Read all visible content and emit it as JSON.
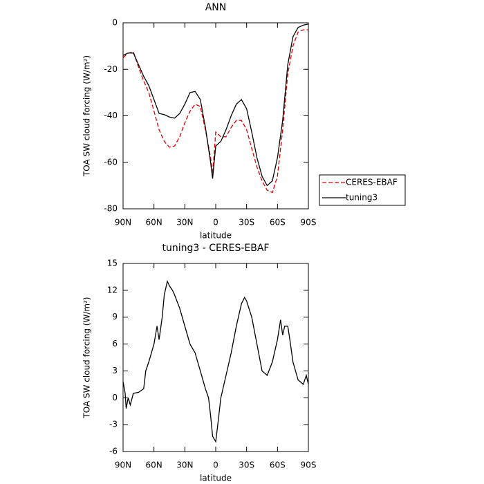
{
  "chart_data": [
    {
      "type": "line",
      "title": "ANN",
      "x_label": "latitude",
      "y_label": "TOA SW cloud forcing (W/m²)",
      "x": [
        90,
        85,
        80,
        75,
        70,
        65,
        60,
        55,
        50,
        45,
        40,
        35,
        30,
        25,
        20,
        15,
        10,
        5,
        3,
        0,
        -5,
        -10,
        -15,
        -20,
        -25,
        -30,
        -35,
        -40,
        -45,
        -50,
        -55,
        -60,
        -65,
        -70,
        -75,
        -80,
        -85,
        -90
      ],
      "series": [
        {
          "name": "CERES-EBAF",
          "color": "#e00000",
          "dash": true,
          "values": [
            -15,
            -13,
            -12.5,
            -19,
            -25,
            -30,
            -38,
            -46,
            -51,
            -53.5,
            -53,
            -49,
            -43,
            -38,
            -35,
            -36,
            -46,
            -58,
            -65,
            -47,
            -49,
            -49,
            -45,
            -42,
            -42,
            -46,
            -54,
            -62,
            -68,
            -72,
            -73,
            -66,
            -46,
            -22,
            -10,
            -4,
            -3,
            -3
          ]
        },
        {
          "name": "tuning3",
          "color": "#000000",
          "dash": false,
          "values": [
            -14,
            -13,
            -13,
            -18,
            -23,
            -27,
            -33,
            -39,
            -39.5,
            -40.5,
            -41,
            -39,
            -35,
            -30,
            -29.5,
            -33,
            -45,
            -60,
            -67,
            -53,
            -51,
            -46,
            -40,
            -35,
            -33,
            -37,
            -47,
            -58,
            -66,
            -70,
            -68,
            -58,
            -42,
            -18,
            -6,
            -2,
            -1,
            -0.5
          ]
        }
      ],
      "xlim": [
        90,
        -90
      ],
      "xticks": [
        {
          "value": 90,
          "label": "90N"
        },
        {
          "value": 60,
          "label": "60N"
        },
        {
          "value": 30,
          "label": "30N"
        },
        0,
        {
          "value": -30,
          "label": "30S"
        },
        {
          "value": -60,
          "label": "60S"
        },
        {
          "value": -90,
          "label": "90S"
        }
      ],
      "ylim": [
        -80,
        0
      ],
      "yticks": [
        -80,
        -60,
        -40,
        -20,
        0
      ],
      "legend": "right"
    },
    {
      "type": "line",
      "title": "tuning3 - CERES-EBAF",
      "x_label": "latitude",
      "y_label": "TOA SW cloud forcing (W/m²)",
      "x": [
        90,
        88,
        87,
        85,
        83,
        80,
        75,
        70,
        68,
        65,
        60,
        57,
        55,
        52,
        50,
        47,
        45,
        42,
        40,
        35,
        30,
        25,
        20,
        15,
        10,
        7,
        5,
        3,
        1,
        0,
        -2,
        -5,
        -10,
        -15,
        -20,
        -25,
        -28,
        -30,
        -35,
        -40,
        -45,
        -50,
        -55,
        -60,
        -63,
        -65,
        -67,
        -70,
        -72,
        -75,
        -80,
        -85,
        -88,
        -90
      ],
      "values": [
        1.8,
        0.5,
        -1.2,
        0,
        -0.8,
        0.5,
        0.6,
        1,
        3,
        4,
        6,
        8,
        6.5,
        9,
        11.5,
        13,
        12.5,
        12,
        11.5,
        10,
        8,
        6,
        5,
        3,
        1,
        0,
        -2,
        -4.3,
        -4.7,
        -4.9,
        -3,
        0,
        2.5,
        5,
        8,
        10.5,
        11.2,
        10.8,
        9,
        6,
        3,
        2.5,
        4,
        6.5,
        8.7,
        7,
        8,
        8,
        6.5,
        4,
        2,
        1.5,
        2.5,
        1.5
      ],
      "color": "#000000",
      "xlim": [
        90,
        -90
      ],
      "xticks": [
        {
          "value": 90,
          "label": "90N"
        },
        {
          "value": 60,
          "label": "60N"
        },
        {
          "value": 30,
          "label": "30N"
        },
        0,
        {
          "value": -30,
          "label": "30S"
        },
        {
          "value": -60,
          "label": "60S"
        },
        {
          "value": -90,
          "label": "90S"
        }
      ],
      "ylim": [
        -6,
        15
      ],
      "yticks": [
        -6,
        -3,
        0,
        3,
        6,
        9,
        12,
        15
      ]
    }
  ]
}
